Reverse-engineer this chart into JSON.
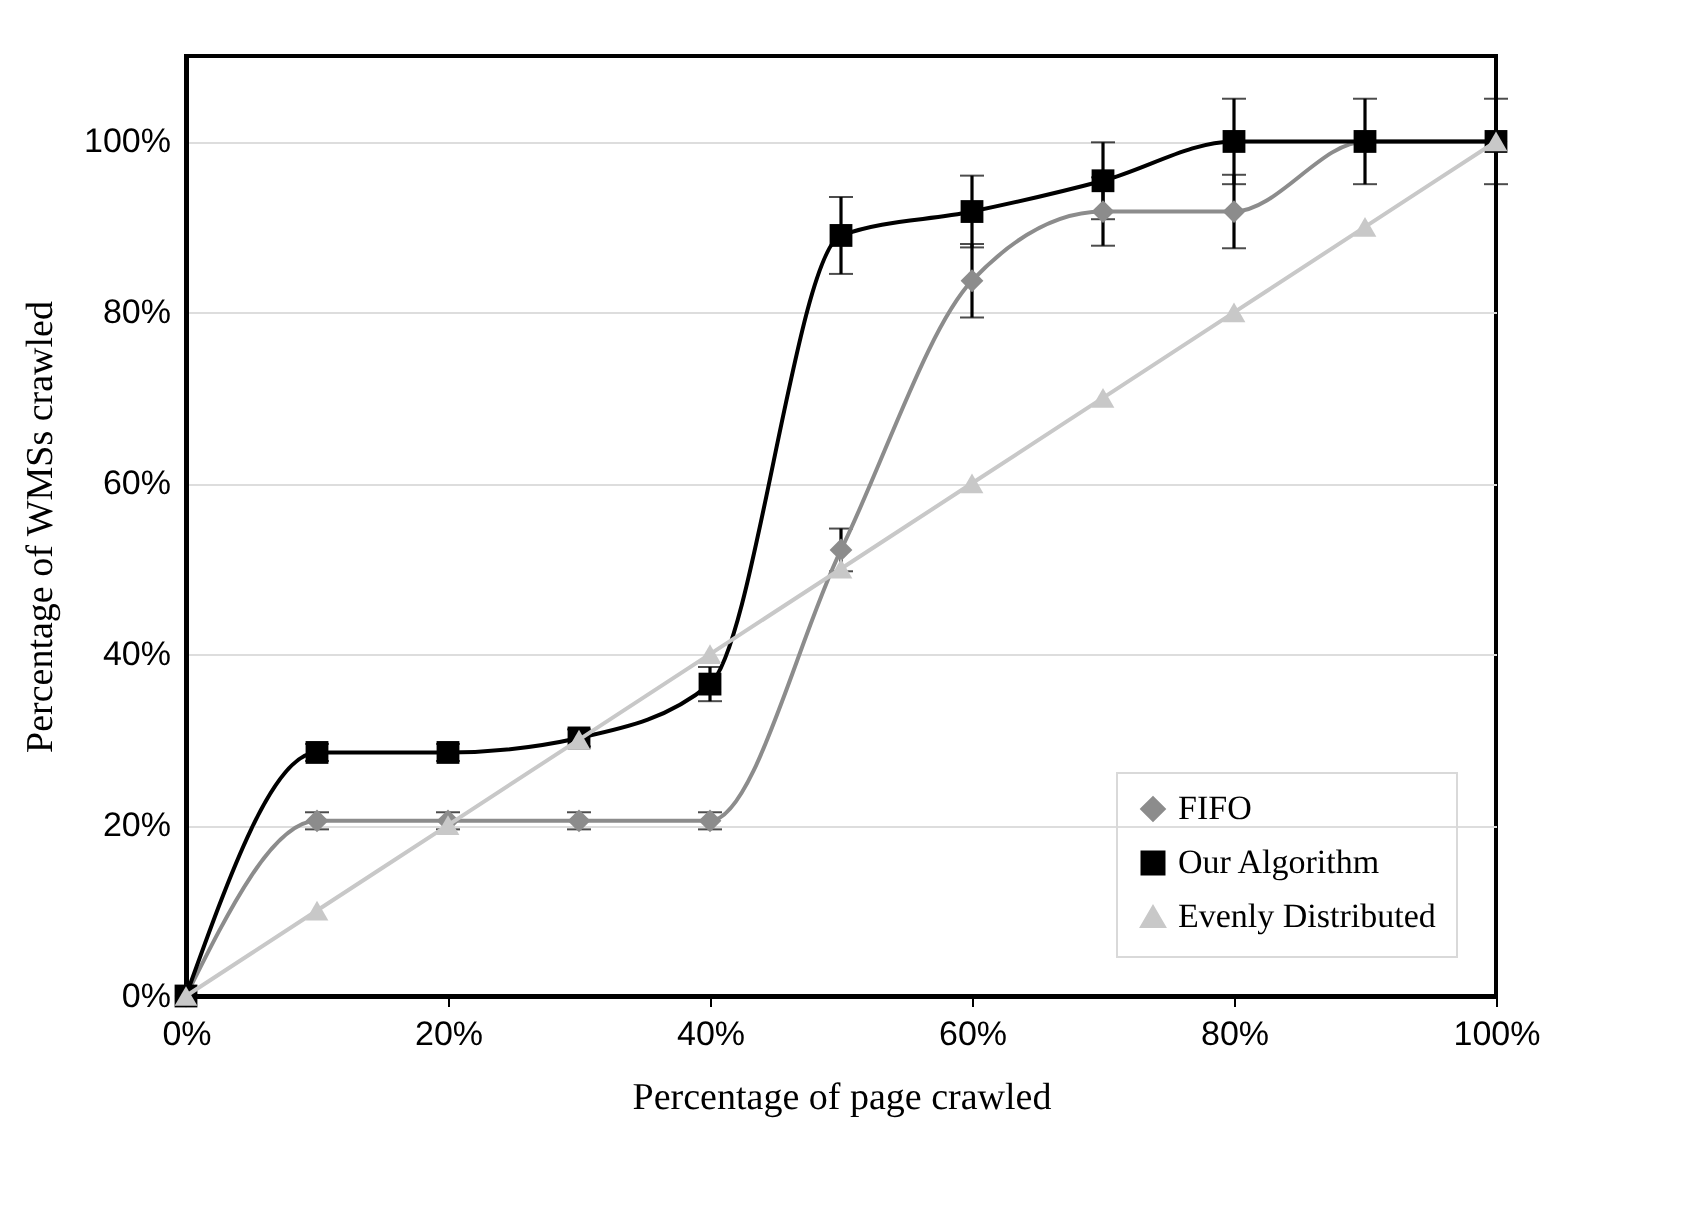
{
  "chart_data": {
    "type": "line",
    "xlabel": "Percentage of page crawled",
    "ylabel": "Percentage of WMSs crawled",
    "x": [
      0,
      10,
      20,
      30,
      40,
      50,
      60,
      70,
      80,
      90,
      100
    ],
    "xlim": [
      0,
      100
    ],
    "xticks": [
      {
        "value": 0,
        "label": "0%"
      },
      {
        "value": 20,
        "label": "20%"
      },
      {
        "value": 40,
        "label": "40%"
      },
      {
        "value": 60,
        "label": "60%"
      },
      {
        "value": 80,
        "label": "80%"
      },
      {
        "value": 100,
        "label": "100%"
      }
    ],
    "ylim": [
      0,
      110
    ],
    "yticks": [
      {
        "value": 0,
        "label": "0%"
      },
      {
        "value": 20,
        "label": "20%"
      },
      {
        "value": 40,
        "label": "40%"
      },
      {
        "value": 60,
        "label": "60%"
      },
      {
        "value": 80,
        "label": "80%"
      },
      {
        "value": 100,
        "label": "100%"
      }
    ],
    "grid": "y",
    "legend": "bottom right",
    "series": [
      {
        "name": "FIFO",
        "color": "#8c8c8c",
        "marker": "diamond",
        "values": [
          0,
          20.5,
          20.5,
          20.5,
          20.5,
          52.2,
          83.7,
          91.8,
          91.8,
          100,
          100
        ],
        "errors": [
          null,
          1,
          1,
          1,
          1,
          2.5,
          4.3,
          4,
          4.3,
          null,
          null
        ]
      },
      {
        "name": "Our Algorithm",
        "color": "#000000",
        "marker": "square",
        "values": [
          0,
          28.5,
          28.5,
          30.2,
          36.5,
          89,
          91.8,
          95.4,
          100,
          100,
          100
        ],
        "errors": [
          null,
          1,
          1,
          1,
          2,
          4.5,
          4.2,
          4.5,
          5,
          5,
          5
        ]
      },
      {
        "name": "Evenly Distributed",
        "color": "#c8c8c8",
        "marker": "triangle",
        "values": [
          0,
          10,
          20,
          30,
          40,
          50,
          60,
          70,
          80,
          90,
          100
        ]
      }
    ]
  }
}
